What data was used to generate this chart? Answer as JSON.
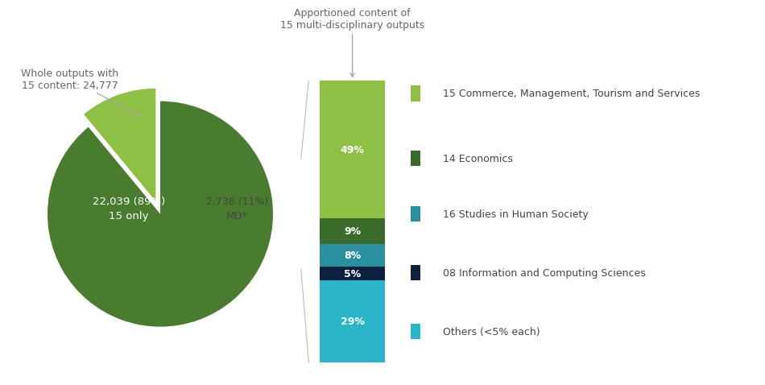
{
  "pie_labels": [
    "22,039 (89%)\n15 only",
    "2,738 (11%)\nMD*"
  ],
  "pie_values": [
    89,
    11
  ],
  "pie_colors": [
    "#4a7c2f",
    "#8dc044"
  ],
  "pie_explode": [
    0,
    0.12
  ],
  "bar_values_topdown": [
    49,
    9,
    8,
    5,
    29
  ],
  "bar_colors_topdown": [
    "#8dc044",
    "#3a6b2a",
    "#2a8fa0",
    "#0d2040",
    "#2ab5c8"
  ],
  "bar_labels_topdown": [
    "49%",
    "9%",
    "8%",
    "5%",
    "29%"
  ],
  "legend_labels": [
    "15 Commerce, Management, Tourism and Services",
    "14 Economics",
    "16 Studies in Human Society",
    "08 Information and Computing Sciences",
    "Others (<5% each)"
  ],
  "legend_colors": [
    "#8dc044",
    "#3a6b2a",
    "#2a8fa0",
    "#0d2040",
    "#2ab5c8"
  ],
  "annotation_pie": "Whole outputs with\n15 content: 24,777",
  "annotation_bar": "Apportioned content of\n15 multi-disciplinary outputs",
  "bg_color": "#ffffff",
  "text_color_white": "#ffffff",
  "text_color_gray": "#666666",
  "label_fontsize": 9,
  "annotation_fontsize": 9
}
